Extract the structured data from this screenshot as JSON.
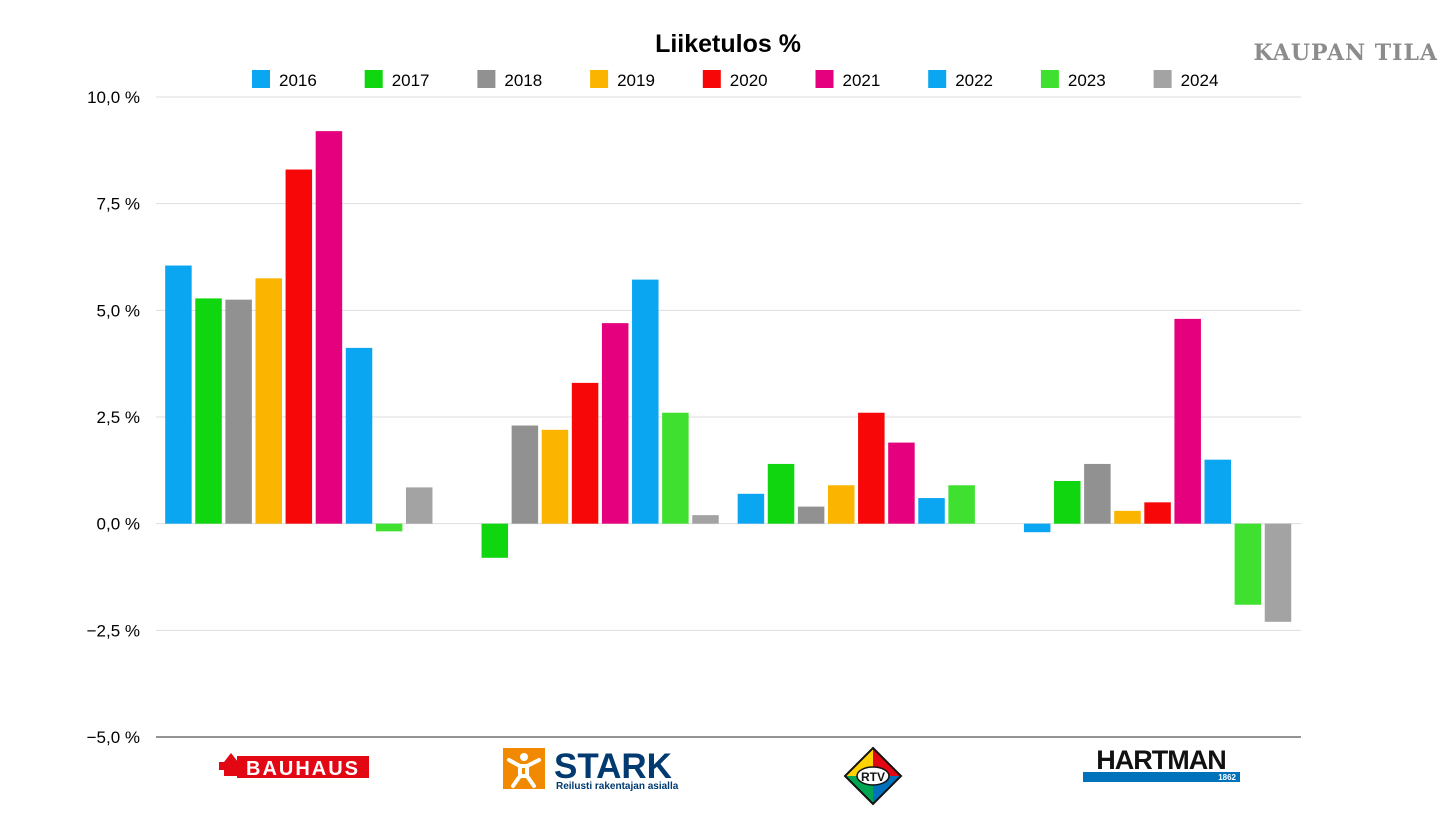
{
  "watermark": "KAUPAN TILA",
  "chart_data": {
    "type": "bar",
    "title": "Liiketulos %",
    "xlabel": "",
    "ylabel": "",
    "ylim": [
      -5,
      10
    ],
    "yticks": [
      10,
      7.5,
      5,
      2.5,
      0,
      -2.5,
      -5
    ],
    "ytick_labels": [
      "10,0 %",
      "7,5 %",
      "5,0 %",
      "2,5 %",
      "0,0 %",
      "−2,5 %",
      "−5,0 %"
    ],
    "grid": true,
    "legend": "top",
    "categories": [
      "BAUHAUS",
      "STARK",
      "RTV",
      "HARTMAN"
    ],
    "category_logos": {
      "BAUHAUS": {
        "text": "BAUHAUS"
      },
      "STARK": {
        "text": "STARK",
        "tagline": "Reilusti rakentajan asialla"
      },
      "RTV": {
        "text": "RTV"
      },
      "HARTMAN": {
        "text": "HARTMAN",
        "tagline": "1862"
      }
    },
    "series": [
      {
        "name": "2016",
        "color": "#0aa6f2",
        "values": [
          6.05,
          null,
          0.7,
          -0.2
        ]
      },
      {
        "name": "2017",
        "color": "#0fd60f",
        "values": [
          5.28,
          -0.8,
          1.4,
          1.0
        ]
      },
      {
        "name": "2018",
        "color": "#919191",
        "values": [
          5.25,
          2.3,
          0.4,
          1.4
        ]
      },
      {
        "name": "2019",
        "color": "#fbb400",
        "values": [
          5.75,
          2.2,
          0.9,
          0.3
        ]
      },
      {
        "name": "2020",
        "color": "#f70707",
        "values": [
          8.3,
          3.3,
          2.6,
          0.5
        ]
      },
      {
        "name": "2021",
        "color": "#e5007d",
        "values": [
          9.2,
          4.7,
          1.9,
          4.8
        ]
      },
      {
        "name": "2022",
        "color": "#0aa6f2",
        "values": [
          4.12,
          5.72,
          0.6,
          1.5
        ]
      },
      {
        "name": "2023",
        "color": "#3fe030",
        "values": [
          -0.18,
          2.6,
          0.9,
          -1.9
        ]
      },
      {
        "name": "2024",
        "color": "#a3a3a3",
        "values": [
          0.85,
          0.2,
          null,
          -2.3
        ]
      }
    ]
  }
}
